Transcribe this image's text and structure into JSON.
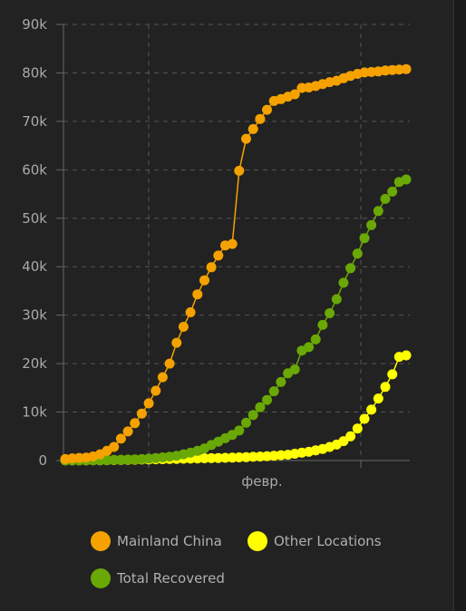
{
  "chart_data": {
    "type": "line",
    "x_label": "февр.",
    "y_ticks": [
      "0",
      "10k",
      "20k",
      "30k",
      "40k",
      "50k",
      "60k",
      "70k",
      "80k",
      "90k"
    ],
    "ylim": [
      0,
      90000
    ],
    "grid": true,
    "legend_position": "bottom",
    "series": [
      {
        "name": "Mainland China",
        "color": "#f5a200",
        "values": [
          300,
          450,
          550,
          600,
          850,
          1300,
          2000,
          2800,
          4500,
          6000,
          7700,
          9700,
          11800,
          14400,
          17200,
          20000,
          24300,
          27600,
          30600,
          34300,
          37200,
          39900,
          42300,
          44400,
          44700,
          59800,
          66400,
          68400,
          70500,
          72400,
          74200,
          74600,
          75100,
          75600,
          76900,
          77000,
          77300,
          77700,
          78100,
          78400,
          78900,
          79400,
          79800,
          80100,
          80200,
          80300,
          80500,
          80600,
          80700,
          80800
        ]
      },
      {
        "name": "Other Locations",
        "color": "#ffff00",
        "values": [
          10,
          20,
          30,
          40,
          50,
          60,
          80,
          100,
          120,
          150,
          170,
          200,
          230,
          260,
          290,
          310,
          340,
          370,
          400,
          430,
          460,
          490,
          520,
          560,
          600,
          650,
          700,
          760,
          820,
          900,
          1000,
          1100,
          1200,
          1400,
          1600,
          1800,
          2100,
          2400,
          2800,
          3300,
          4000,
          5000,
          6600,
          8600,
          10500,
          12800,
          15200,
          17800,
          21400,
          21700
        ]
      },
      {
        "name": "Total Recovered",
        "color": "#6aa805",
        "values": [
          20,
          30,
          40,
          50,
          60,
          80,
          100,
          130,
          160,
          200,
          250,
          300,
          400,
          500,
          650,
          800,
          1000,
          1300,
          1600,
          2000,
          2500,
          3200,
          3900,
          4600,
          5300,
          6200,
          7800,
          9400,
          11000,
          12500,
          14300,
          16200,
          18000,
          18800,
          22700,
          23400,
          25000,
          28000,
          30400,
          33300,
          36700,
          39700,
          42700,
          45900,
          48600,
          51500,
          54000,
          55500,
          57500,
          58000
        ]
      }
    ]
  }
}
